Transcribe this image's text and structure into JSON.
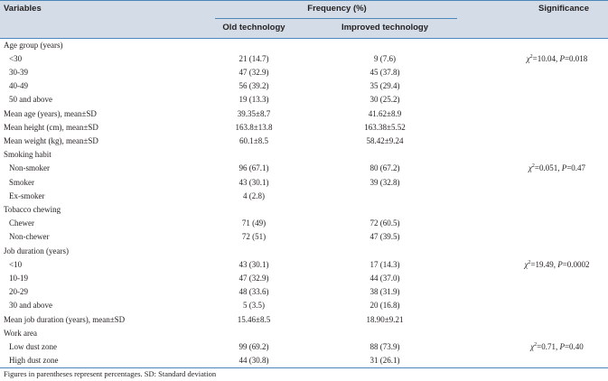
{
  "header": {
    "variables": "Variables",
    "frequency": "Frequency (%)",
    "old": "Old technology",
    "improved": "Improved technology",
    "significance": "Significance"
  },
  "rows": [
    {
      "label": "Age group (years)",
      "old": "",
      "improved": "",
      "kind": "section"
    },
    {
      "label": "<30",
      "old": "21 (14.7)",
      "improved": "9 (7.6)",
      "kind": "sub"
    },
    {
      "label": "30-39",
      "old": "47 (32.9)",
      "improved": "45 (37.8)",
      "kind": "sub"
    },
    {
      "label": "40-49",
      "old": "56 (39.2)",
      "improved": "35 (29.4)",
      "kind": "sub"
    },
    {
      "label": "50 and above",
      "old": "19 (13.3)",
      "improved": "30 (25.2)",
      "kind": "sub"
    },
    {
      "label": "Mean age (years), mean±SD",
      "old": "39.35±8.7",
      "improved": "41.62±8.9",
      "kind": "section"
    },
    {
      "label": "Mean height (cm), mean±SD",
      "old": "163.8±13.8",
      "improved": "163.38±5.52",
      "kind": "section"
    },
    {
      "label": "Mean weight (kg), mean±SD",
      "old": "60.1±8.5",
      "improved": "58.42±9.24",
      "kind": "section"
    },
    {
      "label": "Smoking habit",
      "old": "",
      "improved": "",
      "kind": "section"
    },
    {
      "label": "Non-smoker",
      "old": "96 (67.1)",
      "improved": "80 (67.2)",
      "kind": "sub"
    },
    {
      "label": "Smoker",
      "old": "43 (30.1)",
      "improved": "39 (32.8)",
      "kind": "sub"
    },
    {
      "label": "Ex-smoker",
      "old": "4 (2.8)",
      "improved": "",
      "kind": "sub"
    },
    {
      "label": "Tobacco chewing",
      "old": "",
      "improved": "",
      "kind": "section"
    },
    {
      "label": "Chewer",
      "old": "71 (49)",
      "improved": "72 (60.5)",
      "kind": "sub"
    },
    {
      "label": "Non-chewer",
      "old": "72 (51)",
      "improved": "47 (39.5)",
      "kind": "sub"
    },
    {
      "label": "Job duration (years)",
      "old": "",
      "improved": "",
      "kind": "section"
    },
    {
      "label": "<10",
      "old": "43 (30.1)",
      "improved": "17 (14.3)",
      "kind": "sub"
    },
    {
      "label": "10-19",
      "old": "47 (32.9)",
      "improved": "44 (37.0)",
      "kind": "sub"
    },
    {
      "label": "20-29",
      "old": "48 (33.6)",
      "improved": "38 (31.9)",
      "kind": "sub"
    },
    {
      "label": "30 and above",
      "old": "5 (3.5)",
      "improved": "20 (16.8)",
      "kind": "sub"
    },
    {
      "label": "Mean job duration (years), mean±SD",
      "old": "15.46±8.5",
      "improved": "18.90±9.21",
      "kind": "section"
    },
    {
      "label": "Work area",
      "old": "",
      "improved": "",
      "kind": "section"
    },
    {
      "label": "Low dust zone",
      "old": "99 (69.2)",
      "improved": "88 (73.9)",
      "kind": "sub"
    },
    {
      "label": "High dust zone",
      "old": "44 (30.8)",
      "improved": "31 (26.1)",
      "kind": "sub"
    }
  ],
  "significance": [
    {
      "row": 1,
      "chi_value": "=10.04, ",
      "p_value": "=0.018"
    },
    {
      "row": 9,
      "chi_value": "=0.051, ",
      "p_value": "=0.47"
    },
    {
      "row": 16,
      "chi_value": "=19.49, ",
      "p_value": "=0.0002"
    },
    {
      "row": 22,
      "chi_value": "=0.71, ",
      "p_value": "=0.40"
    }
  ],
  "stat_symbols": {
    "chi": "χ",
    "chi_exp": "2",
    "p": "P"
  },
  "footnote": "Figures in parentheses represent percentages. SD: Standard deviation"
}
